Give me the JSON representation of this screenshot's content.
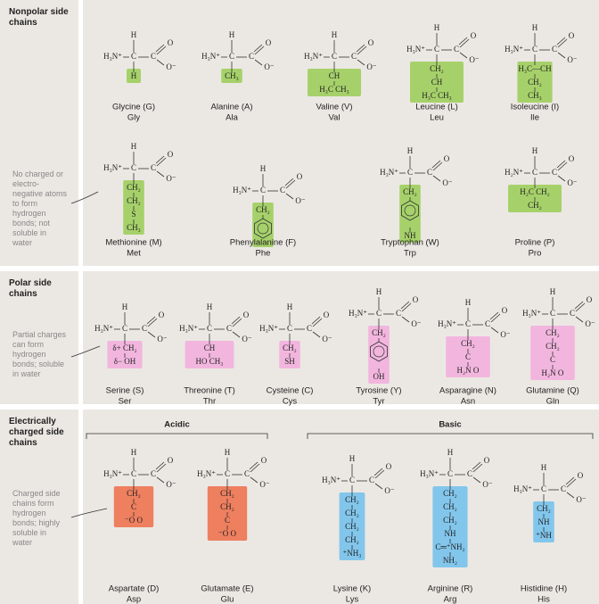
{
  "backbone": {
    "h": "H",
    "amine": "H₃N⁺",
    "c_alpha": "C",
    "c": "C",
    "o": "O",
    "o_minus": "O⁻"
  },
  "sections": [
    {
      "title": "Nonpolar side chains",
      "note": "No charged or electro-negative atoms to form hydrogen bonds; not soluble in water",
      "groups": [
        {
          "color": "#a6d16a",
          "amino_acids": [
            {
              "name": "Glycine (G)",
              "abbr": "Gly",
              "side_chain": [
                "H"
              ]
            },
            {
              "name": "Alanine (A)",
              "abbr": "Ala",
              "side_chain": [
                "CH₃"
              ]
            },
            {
              "name": "Valine (V)",
              "abbr": "Val",
              "side_chain": [
                "CH",
                "H₃C    CH₃"
              ]
            },
            {
              "name": "Leucine (L)",
              "abbr": "Leu",
              "side_chain": [
                "CH₂",
                "CH",
                "H₃C    CH₃"
              ]
            },
            {
              "name": "Isoleucine (I)",
              "abbr": "Ile",
              "side_chain": [
                "H₃C—CH",
                "CH₂",
                "CH₃"
              ]
            },
            {
              "name": "Methionine (M)",
              "abbr": "Met",
              "side_chain": [
                "CH₂",
                "CH₂",
                "S",
                "CH₃"
              ]
            },
            {
              "name": "Phenylalanine (F)",
              "abbr": "Phe",
              "side_chain": [
                "CH₂"
              ],
              "ring": true
            },
            {
              "name": "Tryptophan (W)",
              "abbr": "Trp",
              "side_chain": [
                "CH₂",
                "NH"
              ],
              "ring": true
            },
            {
              "name": "Proline (P)",
              "abbr": "Pro",
              "amine": "H₂N⁺",
              "side_chain": [
                "H₂C    CH₂",
                "CH₂"
              ]
            }
          ]
        }
      ]
    },
    {
      "title": "Polar side chains",
      "note": "Partial charges can form hydrogen bonds; soluble in water",
      "groups": [
        {
          "color": "#f2b6de",
          "amino_acids": [
            {
              "name": "Serine (S)",
              "abbr": "Ser",
              "side_chain": [
                "δ+ CH₂",
                "δ− OH"
              ]
            },
            {
              "name": "Threonine (T)",
              "abbr": "Thr",
              "side_chain": [
                "CH",
                "HO    CH₃"
              ]
            },
            {
              "name": "Cysteine (C)",
              "abbr": "Cys",
              "side_chain": [
                "CH₂",
                "SH"
              ]
            },
            {
              "name": "Tyrosine (Y)",
              "abbr": "Tyr",
              "side_chain": [
                "CH₂",
                "OH"
              ],
              "ring": true
            },
            {
              "name": "Asparagine (N)",
              "abbr": "Asn",
              "side_chain": [
                "CH₂",
                "C",
                "H₂N    O"
              ]
            },
            {
              "name": "Glutamine (Q)",
              "abbr": "Gln",
              "side_chain": [
                "CH₂",
                "CH₂",
                "C",
                "H₂N    O"
              ]
            }
          ]
        }
      ]
    },
    {
      "title": "Electrically charged side chains",
      "note": "Charged side chains form hydrogen bonds; highly soluble in water",
      "groups": [
        {
          "name": "Acidic",
          "color": "#ee7f5f",
          "amino_acids": [
            {
              "name": "Aspartate (D)",
              "abbr": "Asp",
              "side_chain": [
                "CH₂",
                "C",
                "⁻O    O"
              ]
            },
            {
              "name": "Glutamate (E)",
              "abbr": "Glu",
              "side_chain": [
                "CH₂",
                "CH₂",
                "C",
                "⁻O    O"
              ]
            }
          ]
        },
        {
          "name": "Basic",
          "color": "#82c6ec",
          "amino_acids": [
            {
              "name": "Lysine (K)",
              "abbr": "Lys",
              "side_chain": [
                "CH₂",
                "CH₂",
                "CH₂",
                "CH₂",
                "⁺NH₃"
              ]
            },
            {
              "name": "Arginine (R)",
              "abbr": "Arg",
              "side_chain": [
                "CH₂",
                "CH₂",
                "CH₂",
                "NH",
                "C═⁺NH₂",
                "NH₂"
              ]
            },
            {
              "name": "Histidine (H)",
              "abbr": "His",
              "side_chain": [
                "CH₂",
                "NH",
                "⁺NH"
              ]
            }
          ]
        }
      ]
    }
  ]
}
